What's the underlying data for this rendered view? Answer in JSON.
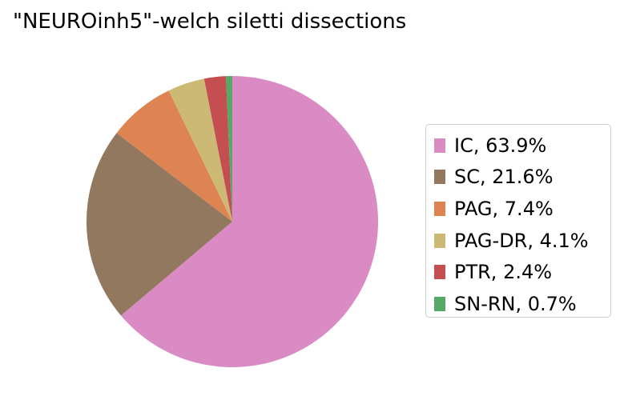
{
  "chart_data": {
    "type": "pie",
    "title": "\"NEUROinh5\"-welch siletti dissections",
    "slices": [
      {
        "label": "IC",
        "value": 63.9,
        "legend": "IC, 63.9%",
        "color": "#da8bc3"
      },
      {
        "label": "SC",
        "value": 21.6,
        "legend": "SC, 21.6%",
        "color": "#937860"
      },
      {
        "label": "PAG",
        "value": 7.4,
        "legend": "PAG, 7.4%",
        "color": "#dd8452"
      },
      {
        "label": "PAG-DR",
        "value": 4.1,
        "legend": "PAG-DR, 4.1%",
        "color": "#ccb974"
      },
      {
        "label": "PTR",
        "value": 2.4,
        "legend": "PTR, 2.4%",
        "color": "#c44e52"
      },
      {
        "label": "SN-RN",
        "value": 0.7,
        "legend": "SN-RN, 0.7%",
        "color": "#55a868"
      }
    ],
    "start_angle": "top",
    "direction": "clockwise",
    "legend_placement": "right"
  }
}
